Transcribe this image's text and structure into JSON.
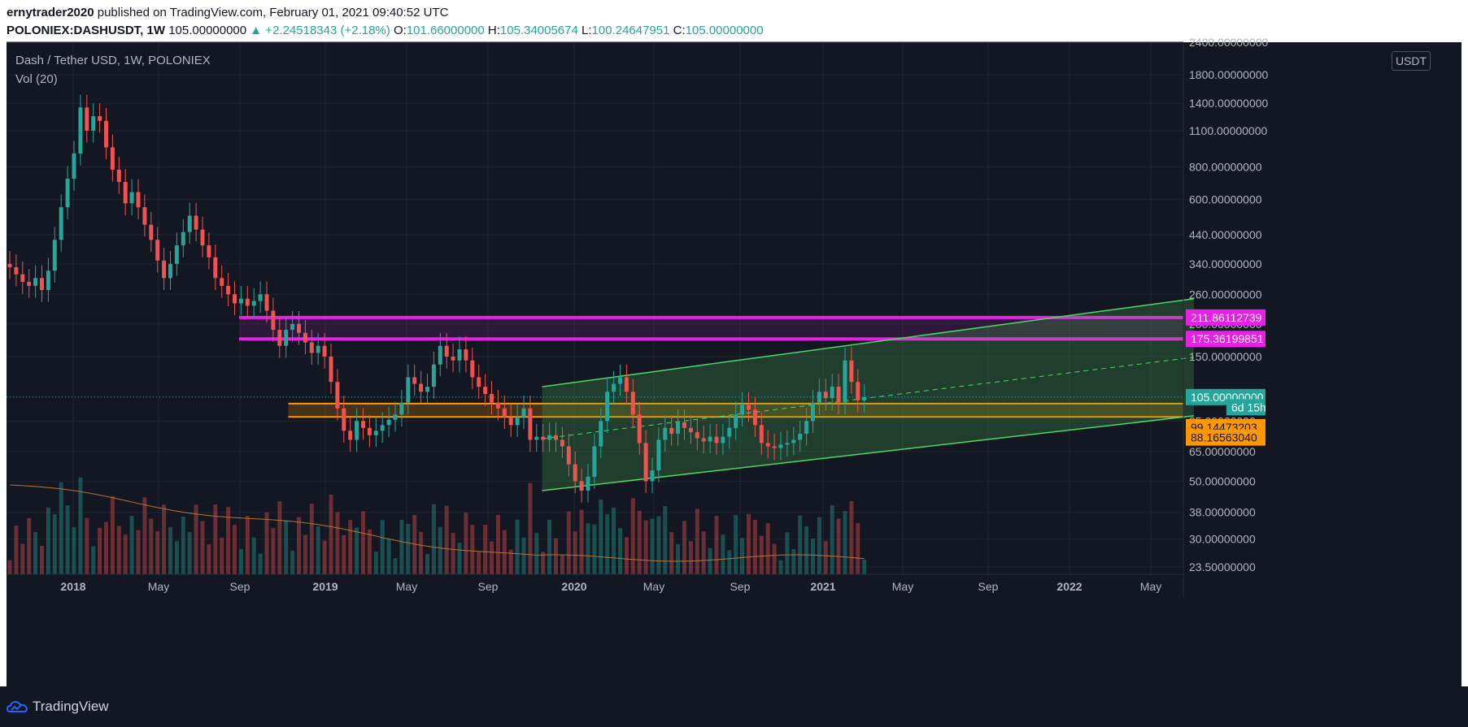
{
  "header": {
    "author": "ernytrader2020",
    "published_text": "published on TradingView.com, February 01, 2021 09:40:52 UTC",
    "symbol": "POLONIEX:DASHUSDT, 1W",
    "last": "105.00000000",
    "change": "▲ +2.24518343 (+2.18%)",
    "o_label": "O:",
    "o_value": "101.66000000",
    "h_label": "H:",
    "h_value": "105.34005674",
    "l_label": "L:",
    "l_value": "100.24647951",
    "c_label": "C:",
    "c_value": "105.00000000"
  },
  "legend": {
    "title": "Dash / Tether USD, 1W, POLONIEX",
    "volume": "Vol (20)"
  },
  "currency_button": "USDT",
  "footer": {
    "brand": "TradingView"
  },
  "colors": {
    "up": "#26a69a",
    "down": "#ef5350",
    "background": "#131722",
    "resistance": "#e91ee9",
    "support": "#ff9800",
    "channel": "#4caf50"
  },
  "chart_data": {
    "type": "candlestick",
    "timeframe": "1W",
    "y_scale": "log",
    "ylim": [
      22,
      2400
    ],
    "y_ticks": [
      "2400.00000000",
      "1800.00000000",
      "1400.00000000",
      "1100.00000000",
      "800.00000000",
      "600.00000000",
      "440.00000000",
      "340.00000000",
      "260.00000000",
      "200.00000000",
      "150.00000000",
      "105.00000000",
      "85.00000000",
      "65.00000000",
      "50.00000000",
      "38.00000000",
      "30.00000000",
      "23.50000000"
    ],
    "x_ticks": [
      "2018",
      "May",
      "Sep",
      "2019",
      "May",
      "Sep",
      "2020",
      "May",
      "Sep",
      "2021",
      "May",
      "Sep",
      "2022",
      "May"
    ],
    "price_labels": [
      {
        "label": "211.86112739",
        "value": 211.86,
        "color": "#e91ee9"
      },
      {
        "label": "175.36199851",
        "value": 175.36,
        "color": "#e91ee9"
      },
      {
        "label": "105.00000000",
        "value": 105,
        "color": "#26a69a"
      },
      {
        "label": "6d 15h",
        "value": 96,
        "color": "#26a69a"
      },
      {
        "label": "99.14473203",
        "value": 80.5,
        "color": "#ff9800"
      },
      {
        "label": "88.16563040",
        "value": 73.5,
        "color": "#ff9800"
      }
    ],
    "zones": [
      {
        "name": "resistance",
        "low": 175.36,
        "high": 211.86,
        "from": "2018-09",
        "to": "2021-12"
      },
      {
        "name": "support",
        "low": 88.17,
        "high": 99.14,
        "from": "2018-12",
        "to": "2021-12"
      }
    ],
    "channel": {
      "from": "2019-12",
      "to": "2021-10",
      "start_low": 46,
      "start_high": 115,
      "end_low": 89,
      "end_high": 250
    },
    "series": [
      {
        "points": [
          [
            0,
            340,
            330
          ],
          [
            1,
            330,
            310
          ],
          [
            2,
            310,
            290
          ],
          [
            3,
            290,
            280
          ],
          [
            4,
            280,
            300
          ],
          [
            5,
            300,
            270
          ],
          [
            6,
            270,
            320
          ],
          [
            7,
            320,
            420
          ],
          [
            8,
            420,
            560
          ],
          [
            9,
            560,
            720
          ],
          [
            10,
            720,
            900
          ],
          [
            11,
            900,
            1350
          ],
          [
            12,
            1350,
            1100
          ],
          [
            13,
            1100,
            1250
          ],
          [
            14,
            1250,
            1200
          ],
          [
            15,
            1200,
            950
          ],
          [
            16,
            950,
            780
          ],
          [
            17,
            780,
            700
          ],
          [
            18,
            700,
            580
          ],
          [
            19,
            580,
            640
          ],
          [
            20,
            640,
            560
          ],
          [
            21,
            560,
            480
          ],
          [
            22,
            480,
            420
          ],
          [
            23,
            420,
            350
          ],
          [
            24,
            350,
            300
          ],
          [
            25,
            300,
            340
          ],
          [
            26,
            340,
            400
          ],
          [
            27,
            400,
            450
          ],
          [
            28,
            450,
            520
          ],
          [
            29,
            520,
            460
          ],
          [
            30,
            460,
            400
          ],
          [
            31,
            400,
            360
          ],
          [
            32,
            360,
            300
          ],
          [
            33,
            300,
            280
          ],
          [
            34,
            280,
            260
          ],
          [
            35,
            260,
            240
          ],
          [
            36,
            240,
            250
          ],
          [
            37,
            250,
            235
          ],
          [
            38,
            235,
            245
          ],
          [
            39,
            245,
            260
          ],
          [
            40,
            260,
            225
          ],
          [
            41,
            225,
            190
          ],
          [
            42,
            190,
            165
          ],
          [
            43,
            165,
            190
          ],
          [
            44,
            190,
            200
          ],
          [
            45,
            200,
            185
          ],
          [
            46,
            185,
            170
          ],
          [
            47,
            170,
            155
          ],
          [
            48,
            155,
            165
          ],
          [
            49,
            165,
            150
          ],
          [
            50,
            150,
            120
          ],
          [
            51,
            120,
            95
          ],
          [
            52,
            95,
            78
          ],
          [
            53,
            78,
            72
          ],
          [
            54,
            72,
            85
          ],
          [
            55,
            85,
            80
          ],
          [
            56,
            80,
            75
          ],
          [
            57,
            75,
            78
          ],
          [
            58,
            78,
            82
          ],
          [
            59,
            82,
            86
          ],
          [
            60,
            86,
            90
          ],
          [
            61,
            90,
            100
          ],
          [
            62,
            100,
            125
          ],
          [
            63,
            125,
            118
          ],
          [
            64,
            118,
            110
          ],
          [
            65,
            110,
            115
          ],
          [
            66,
            115,
            140
          ],
          [
            67,
            140,
            165
          ],
          [
            68,
            165,
            150
          ],
          [
            69,
            150,
            145
          ],
          [
            70,
            145,
            160
          ],
          [
            71,
            160,
            145
          ],
          [
            72,
            145,
            125
          ],
          [
            73,
            125,
            115
          ],
          [
            74,
            115,
            108
          ],
          [
            75,
            108,
            100
          ],
          [
            76,
            100,
            95
          ],
          [
            77,
            95,
            88
          ],
          [
            78,
            88,
            82
          ],
          [
            79,
            82,
            88
          ],
          [
            80,
            88,
            95
          ],
          [
            81,
            95,
            72
          ],
          [
            82,
            72,
            74
          ],
          [
            83,
            74,
            72
          ],
          [
            84,
            72,
            75
          ],
          [
            85,
            75,
            72
          ],
          [
            86,
            72,
            68
          ],
          [
            87,
            68,
            58
          ],
          [
            88,
            58,
            50
          ],
          [
            89,
            50,
            46
          ],
          [
            90,
            46,
            52
          ],
          [
            91,
            52,
            68
          ],
          [
            92,
            68,
            85
          ],
          [
            93,
            85,
            110
          ],
          [
            94,
            110,
            118
          ],
          [
            95,
            118,
            125
          ],
          [
            96,
            125,
            110
          ],
          [
            97,
            110,
            90
          ],
          [
            98,
            90,
            70
          ],
          [
            99,
            70,
            50
          ],
          [
            100,
            50,
            55
          ],
          [
            101,
            55,
            72
          ],
          [
            102,
            72,
            80
          ],
          [
            103,
            80,
            76
          ],
          [
            104,
            76,
            84
          ],
          [
            105,
            84,
            80
          ],
          [
            106,
            80,
            77
          ],
          [
            107,
            77,
            73
          ],
          [
            108,
            73,
            71
          ],
          [
            109,
            71,
            74
          ],
          [
            110,
            74,
            70
          ],
          [
            111,
            70,
            74
          ],
          [
            112,
            74,
            80
          ],
          [
            113,
            80,
            90
          ],
          [
            114,
            90,
            98
          ],
          [
            115,
            98,
            94
          ],
          [
            116,
            94,
            82
          ],
          [
            117,
            82,
            70
          ],
          [
            118,
            70,
            68
          ],
          [
            119,
            68,
            67
          ],
          [
            120,
            67,
            69
          ],
          [
            121,
            69,
            70
          ],
          [
            122,
            70,
            72
          ],
          [
            123,
            72,
            76
          ],
          [
            124,
            76,
            85
          ],
          [
            125,
            85,
            100
          ],
          [
            126,
            100,
            110
          ],
          [
            127,
            110,
            104
          ],
          [
            128,
            104,
            115
          ],
          [
            129,
            115,
            100
          ],
          [
            130,
            100,
            145
          ],
          [
            131,
            145,
            120
          ],
          [
            132,
            120,
            102
          ],
          [
            133,
            102,
            105
          ]
        ]
      }
    ]
  }
}
